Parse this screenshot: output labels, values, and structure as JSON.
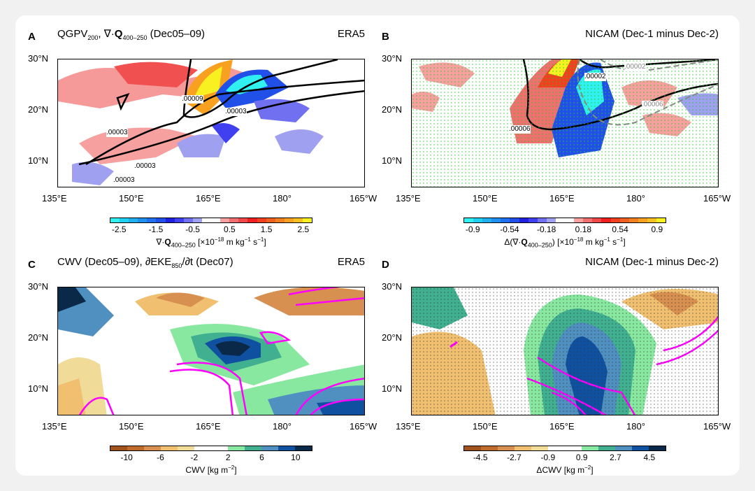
{
  "panels": [
    {
      "label": "A",
      "title_main": "QGPV",
      "title_sub": "200",
      "title_rest": ", ∇·",
      "title_bold": "Q",
      "title_sub2": "400–250",
      "title_end": " (Dec05–09)",
      "source": "ERA5",
      "contour_labels": [
        ".00003",
        ".00003",
        ".00003",
        ".00009",
        ".00003"
      ],
      "colorbar": {
        "ticks": [
          "-2.5",
          "-1.5",
          "-0.5",
          "0.5",
          "1.5",
          "2.5"
        ],
        "label_pre": "∇·",
        "label_bold": "Q",
        "label_sub": "400–250",
        "label_post": " [×10",
        "label_exp": "−18",
        "label_end": " m kg",
        "label_exp2": "−1",
        "label_end2": " s",
        "label_exp3": "−1",
        "label_close": "]",
        "colors": [
          "#30f0f0",
          "#20d0f0",
          "#20b0f0",
          "#2090f0",
          "#2070f0",
          "#2050e8",
          "#2020e0",
          "#4040f0",
          "#7070f0",
          "#a0a0f0",
          "#ffffff",
          "#ffffff",
          "#f8a0a0",
          "#f07070",
          "#f04848",
          "#f02020",
          "#f04020",
          "#f06020",
          "#f08020",
          "#f8a020",
          "#f8c020",
          "#f8f020"
        ]
      }
    },
    {
      "label": "B",
      "source": "NICAM (Dec-1 minus Dec-2)",
      "contour_labels": [
        ".00006",
        ".00006",
        ".00002",
        ".00002"
      ],
      "colorbar": {
        "ticks": [
          "-0.9",
          "-0.54",
          "-0.18",
          "0.18",
          "0.54",
          "0.9"
        ],
        "label_pre": "Δ(∇·",
        "label_bold": "Q",
        "label_sub": "400–250",
        "label_post": ") [×10",
        "label_exp": "−18",
        "label_end": " m kg",
        "label_exp2": "−1",
        "label_end2": " s",
        "label_exp3": "−1",
        "label_close": "]",
        "colors": [
          "#30f0f0",
          "#20d0f0",
          "#20b0f0",
          "#2090f0",
          "#2070f0",
          "#2050e8",
          "#2020e0",
          "#4040f0",
          "#7070f0",
          "#a0a0f0",
          "#ffffff",
          "#ffffff",
          "#f8a0a0",
          "#f07070",
          "#f04848",
          "#f02020",
          "#f04020",
          "#f06020",
          "#f08020",
          "#f8a020",
          "#f8c020",
          "#f8f020"
        ]
      }
    },
    {
      "label": "C",
      "title_a": "CWV (Dec05–09), ∂EKE",
      "title_sub": "850",
      "title_b": "/∂t (Dec07)",
      "source": "ERA5",
      "colorbar": {
        "ticks": [
          "-10",
          "-6",
          "-2",
          "2",
          "6",
          "10"
        ],
        "label": "CWV [kg m",
        "label_exp": "−2",
        "label_close": "]",
        "colors": [
          "#a0521c",
          "#c06a2c",
          "#d89050",
          "#f0c070",
          "#f0dc98",
          "#ffffff",
          "#ffffff",
          "#88e8a0",
          "#40b090",
          "#5090c0",
          "#1050a0",
          "#0a2848"
        ]
      }
    },
    {
      "label": "D",
      "source": "NICAM (Dec-1 minus Dec-2)",
      "colorbar": {
        "ticks": [
          "-4.5",
          "-2.7",
          "-0.9",
          "0.9",
          "2.7",
          "4.5"
        ],
        "label": "ΔCWV [kg m",
        "label_exp": "−2",
        "label_close": "]",
        "colors": [
          "#a0521c",
          "#c06a2c",
          "#d89050",
          "#f0c070",
          "#f0dc98",
          "#ffffff",
          "#ffffff",
          "#88e8a0",
          "#40b090",
          "#5090c0",
          "#1050a0",
          "#0a2848"
        ]
      }
    }
  ],
  "axes": {
    "x_ticks": [
      "135°E",
      "150°E",
      "165°E",
      "180°",
      "165°W"
    ],
    "y_ticks": [
      "30°N",
      "20°N",
      "10°N"
    ]
  },
  "colors": {
    "contour_positive": "#000000",
    "contour_nicam": "#888888",
    "eke_contour": "#ff00ff",
    "stipple": "#22cc22"
  }
}
